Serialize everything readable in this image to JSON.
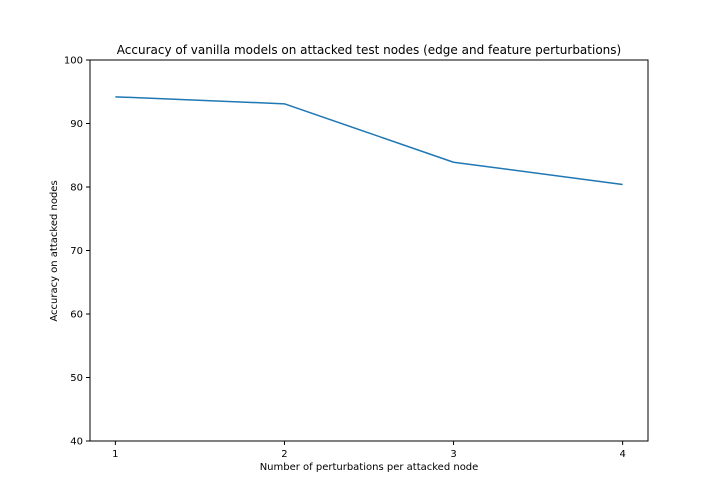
{
  "chart_data": {
    "type": "line",
    "title": "Accuracy of vanilla models on attacked test nodes (edge and feature perturbations)",
    "xlabel": "Number of perturbations per attacked node",
    "ylabel": "Accuracy on attacked nodes",
    "x": [
      1,
      2,
      3,
      4
    ],
    "xticks": [
      "1",
      "2",
      "3",
      "4"
    ],
    "xlim": [
      0.85,
      4.15
    ],
    "ylim": [
      40,
      100
    ],
    "yticks": [
      "40",
      "50",
      "60",
      "70",
      "80",
      "90",
      "100"
    ],
    "grid": false,
    "series": [
      {
        "name": "Accuracy",
        "values": [
          94.2,
          93.1,
          83.9,
          80.4
        ],
        "color": "#1f77b4"
      }
    ]
  }
}
